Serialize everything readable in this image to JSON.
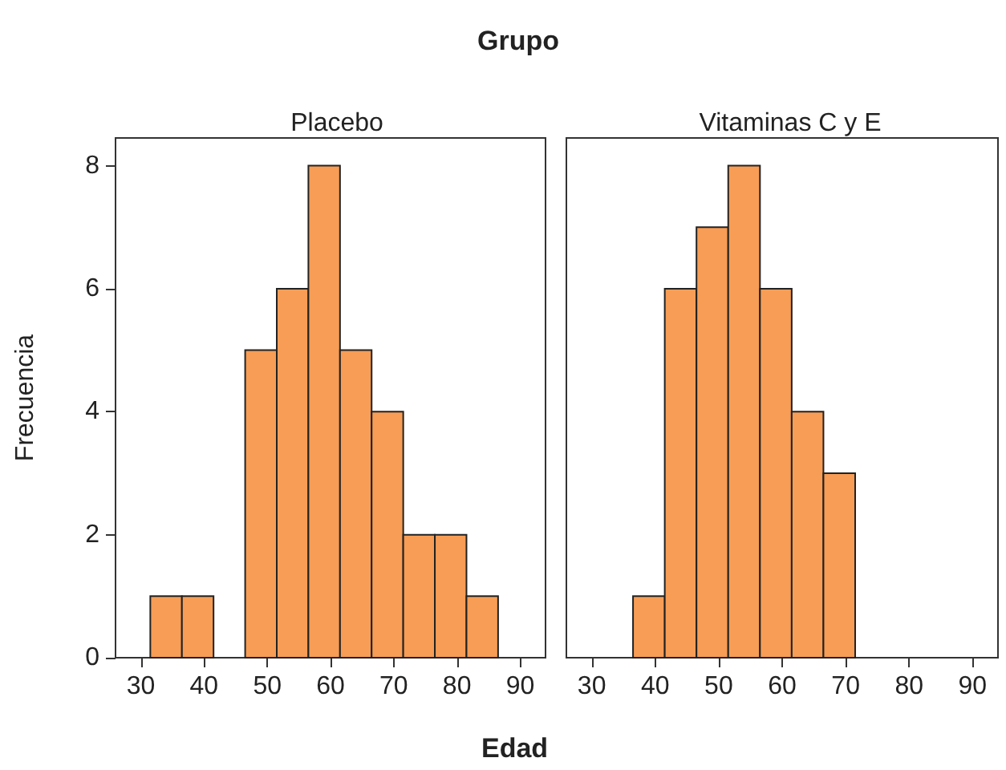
{
  "chart_data": [
    {
      "type": "histogram",
      "title": "Placebo",
      "annotations": [
        "Grupo"
      ],
      "xlabel": "Edad",
      "ylabel": "Frecuencia",
      "bins": [
        31.5,
        36.5,
        41.5,
        46.5,
        51.5,
        56.5,
        61.5,
        66.5,
        71.5,
        76.5,
        81.5,
        86.5
      ],
      "values": [
        1,
        1,
        0,
        5,
        6,
        8,
        5,
        4,
        2,
        2,
        1
      ],
      "color": "#f79d55",
      "xlim": [
        26,
        94
      ],
      "xticks": [
        30,
        40,
        50,
        60,
        70,
        80,
        90
      ],
      "ylim": [
        0,
        8.45
      ],
      "yticks": [
        0,
        2,
        4,
        6,
        8
      ]
    },
    {
      "type": "histogram",
      "title": "Vitaminas C y E",
      "bins": [
        36.5,
        41.5,
        46.5,
        51.5,
        56.5,
        61.5,
        66.5,
        71.5
      ],
      "values": [
        1,
        6,
        7,
        8,
        6,
        4,
        3
      ],
      "color": "#f79d55",
      "xlim": [
        26,
        94
      ],
      "xticks": [
        30,
        40,
        50,
        60,
        70,
        80,
        90
      ],
      "ylim": [
        0,
        8.45
      ],
      "yticks": [
        0,
        2,
        4,
        6,
        8
      ],
      "tick_labels": "x"
    }
  ]
}
